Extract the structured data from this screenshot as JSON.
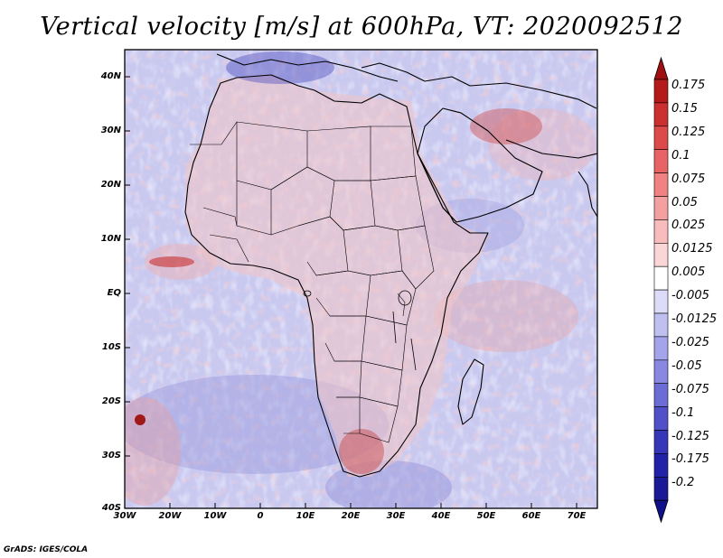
{
  "title": "Vertical velocity [m/s] at 600hPa, VT: 2020092512",
  "credit": "GrADS: IGES/COLA",
  "map": {
    "region": "Africa and Middle East",
    "lat_labels": [
      "40N",
      "30N",
      "20N",
      "10N",
      "EQ",
      "10S",
      "20S",
      "30S",
      "40S"
    ],
    "lon_labels": [
      "30W",
      "20W",
      "10W",
      "0",
      "10E",
      "20E",
      "30E",
      "40E",
      "50E",
      "60E",
      "70E"
    ]
  },
  "colorbar": {
    "labels": [
      "0.175",
      "0.15",
      "0.125",
      "0.1",
      "0.075",
      "0.05",
      "0.025",
      "0.0125",
      "0.005",
      "-0.005",
      "-0.0125",
      "-0.025",
      "-0.05",
      "-0.075",
      "-0.1",
      "-0.125",
      "-0.175",
      "-0.2"
    ],
    "colors": [
      "#b41a1a",
      "#cc2f2f",
      "#dd4a4a",
      "#e86464",
      "#f08282",
      "#f4a0a0",
      "#f8bcbc",
      "#fbd6d6",
      "#ffffff",
      "#dcdcf8",
      "#c0c0f0",
      "#a4a4ea",
      "#8888e0",
      "#6c6cd6",
      "#5050c8",
      "#3636b8",
      "#2222a8",
      "#1a1a96"
    ],
    "top_triangle": "#a01010",
    "bottom_triangle": "#10108a"
  }
}
